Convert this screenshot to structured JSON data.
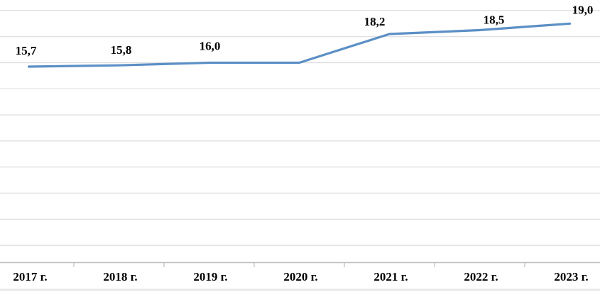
{
  "chart_data": {
    "type": "line",
    "title": "",
    "xlabel": "",
    "ylabel": "",
    "categories": [
      "2017 г.",
      "2018 г.",
      "2019 г.",
      "2020 г.",
      "2021 г.",
      "2022 г.",
      "2023 г."
    ],
    "series": [
      {
        "name": "",
        "values": [
          15.7,
          15.8,
          16.0,
          16.0,
          18.2,
          18.5,
          19.0
        ],
        "point_labels": [
          "15,7",
          "15,8",
          "16,0",
          "",
          "18,2",
          "18,5",
          "19,0"
        ]
      }
    ],
    "ylim": [
      0.4,
      20.4
    ],
    "gridline_step": 2,
    "grid": "horizontal-only",
    "y_axis_tick_labels_visible": false,
    "legend_position": "none",
    "markers": "none",
    "decimal_separator": ",",
    "colors": {
      "line": "#5b8fc5",
      "gridline": "#dcdcdc",
      "axis": "#bdbdbd",
      "tick": "#bdbdbd",
      "label_text": "#000000",
      "bottom_edge": "#e7e7e7",
      "background": "#ffffff"
    }
  }
}
